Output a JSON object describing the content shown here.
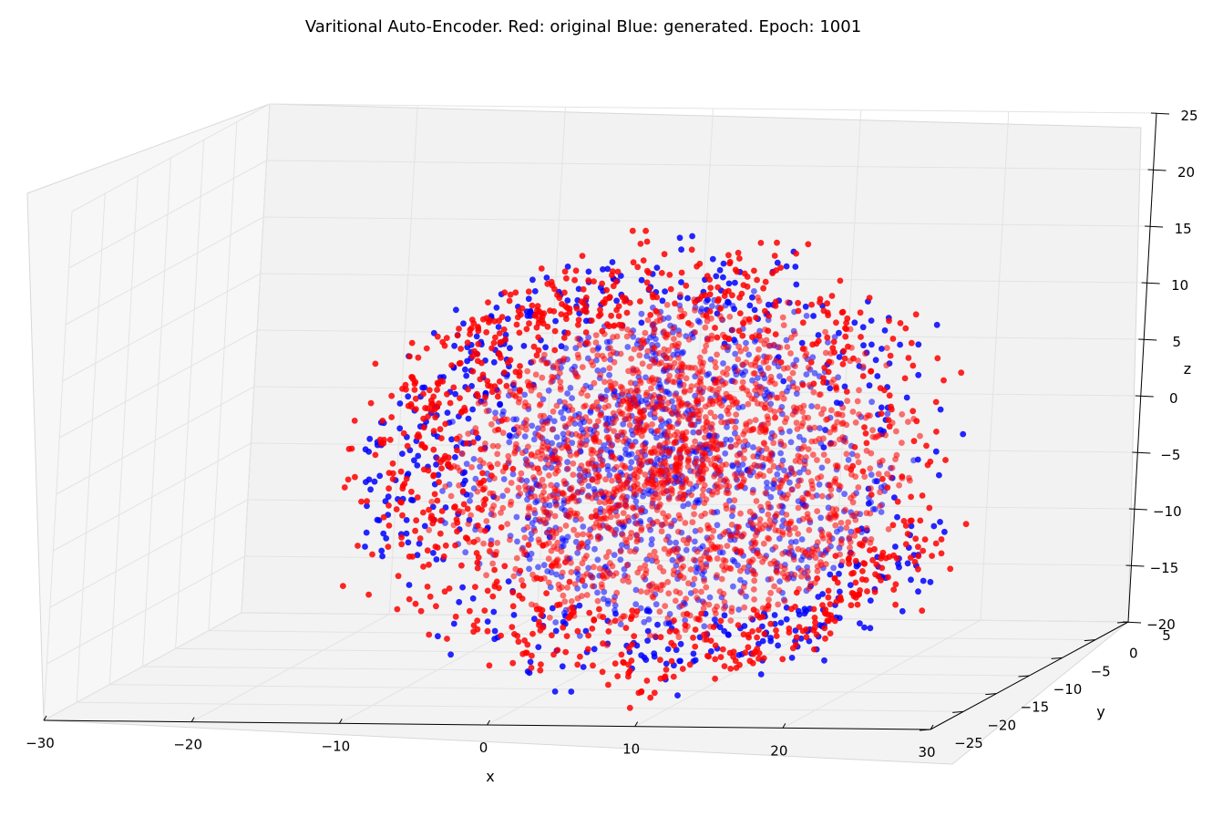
{
  "chart_data": {
    "type": "scatter",
    "projection": "3d",
    "title": "Varitional Auto-Encoder. Red: original Blue: generated. Epoch: 1001",
    "xlabel": "x",
    "ylabel": "y",
    "zlabel": "z",
    "xlim": [
      -30,
      30
    ],
    "ylim": [
      -25,
      5
    ],
    "zlim": [
      -20,
      25
    ],
    "x_ticks": [
      -30,
      -20,
      -10,
      0,
      10,
      20,
      30
    ],
    "y_ticks": [
      -25,
      -20,
      -15,
      -10,
      -5,
      0,
      5
    ],
    "z_ticks": [
      -20,
      -15,
      -10,
      -5,
      0,
      5,
      10,
      15,
      20,
      25
    ],
    "x_tick_labels": [
      "−30",
      "−20",
      "−10",
      "0",
      "10",
      "20",
      "30"
    ],
    "y_tick_labels": [
      "−25",
      "−20",
      "−15",
      "−10",
      "−5",
      "0",
      "5"
    ],
    "z_tick_labels": [
      "−20",
      "−15",
      "−10",
      "−5",
      "0",
      "5",
      "10",
      "15",
      "20",
      "25"
    ],
    "grid": true,
    "legend": "none",
    "colors": {
      "original": "#ff0000",
      "generated": "#0000ff",
      "pane_back": "#f2f2f2",
      "pane_side": "#f7f7f7",
      "pane_floor": "#f3f3f3",
      "grid": "#e3e3e3"
    },
    "series": [
      {
        "role": "original",
        "color": "#ff0000",
        "shape": "swiss-roll spiral",
        "points": [
          [
            -2.0,
            -7.5,
            -3.5
          ],
          [
            2.5,
            -7.5,
            -5.0
          ],
          [
            5.5,
            -7.5,
            -2.0
          ],
          [
            3.0,
            -7.5,
            2.0
          ],
          [
            -1.0,
            -7.5,
            0.5
          ],
          [
            7.0,
            -7.5,
            -5.5
          ],
          [
            9.0,
            -7.5,
            -1.0
          ],
          [
            6.5,
            -7.5,
            4.0
          ],
          [
            0.5,
            -7.5,
            4.5
          ],
          [
            -4.5,
            -7.5,
            0.0
          ],
          [
            -3.5,
            -7.5,
            -6.5
          ],
          [
            3.5,
            -7.5,
            -10.5
          ],
          [
            10.5,
            -7.5,
            -9.0
          ],
          [
            13.5,
            -7.5,
            -2.5
          ],
          [
            11.5,
            -7.5,
            5.5
          ],
          [
            5.5,
            -7.5,
            9.0
          ],
          [
            -2.5,
            -7.5,
            8.0
          ],
          [
            -8.5,
            -7.5,
            2.5
          ],
          [
            -8.0,
            -7.5,
            -5.5
          ],
          [
            -2.0,
            -7.5,
            -12.5
          ],
          [
            7.0,
            -7.5,
            -14.5
          ],
          [
            15.0,
            -7.5,
            -10.5
          ],
          [
            18.5,
            -7.5,
            -2.0
          ],
          [
            16.0,
            -7.5,
            7.5
          ],
          [
            8.5,
            -7.5,
            13.0
          ],
          [
            -1.5,
            -7.5,
            13.5
          ],
          [
            -10.0,
            -7.5,
            9.0
          ],
          [
            -14.0,
            -7.5,
            0.0
          ],
          [
            -12.0,
            -7.5,
            -9.0
          ],
          [
            -5.0,
            -7.5,
            -16.5
          ],
          [
            5.0,
            -7.5,
            -19.5
          ],
          [
            15.0,
            -7.5,
            -16.0
          ],
          [
            21.0,
            -7.5,
            -8.5
          ]
        ]
      },
      {
        "role": "generated",
        "color": "#0000ff",
        "shape": "swiss-roll spiral",
        "points": [
          [
            -1.5,
            -7.5,
            -3.0
          ],
          [
            2.0,
            -7.5,
            -5.5
          ],
          [
            5.0,
            -7.5,
            -2.5
          ],
          [
            3.5,
            -7.5,
            2.5
          ],
          [
            -1.5,
            -7.5,
            1.0
          ],
          [
            7.5,
            -7.5,
            -5.0
          ],
          [
            8.5,
            -7.5,
            -1.5
          ],
          [
            6.0,
            -7.5,
            4.5
          ],
          [
            0.0,
            -7.5,
            4.0
          ],
          [
            -5.0,
            -7.5,
            0.5
          ],
          [
            -3.0,
            -7.5,
            -7.0
          ],
          [
            4.0,
            -7.5,
            -11.0
          ],
          [
            11.0,
            -7.5,
            -8.5
          ],
          [
            13.0,
            -7.5,
            -3.0
          ],
          [
            12.0,
            -7.5,
            6.0
          ],
          [
            5.0,
            -7.5,
            9.5
          ],
          [
            -3.0,
            -7.5,
            7.5
          ],
          [
            -9.0,
            -7.5,
            2.0
          ],
          [
            -7.5,
            -7.5,
            -6.0
          ],
          [
            -1.5,
            -7.5,
            -13.0
          ],
          [
            7.5,
            -7.5,
            -14.0
          ],
          [
            15.5,
            -7.5,
            -11.0
          ],
          [
            18.0,
            -7.5,
            -2.5
          ],
          [
            16.5,
            -7.5,
            8.0
          ],
          [
            8.0,
            -7.5,
            13.5
          ],
          [
            -2.0,
            -7.5,
            13.0
          ],
          [
            -10.5,
            -7.5,
            8.5
          ],
          [
            -13.5,
            -7.5,
            -0.5
          ],
          [
            -12.5,
            -7.5,
            -8.5
          ],
          [
            -4.5,
            -7.5,
            -17.0
          ],
          [
            5.5,
            -7.5,
            -19.0
          ],
          [
            15.5,
            -7.5,
            -16.5
          ],
          [
            20.5,
            -7.5,
            -9.0
          ]
        ]
      }
    ]
  }
}
